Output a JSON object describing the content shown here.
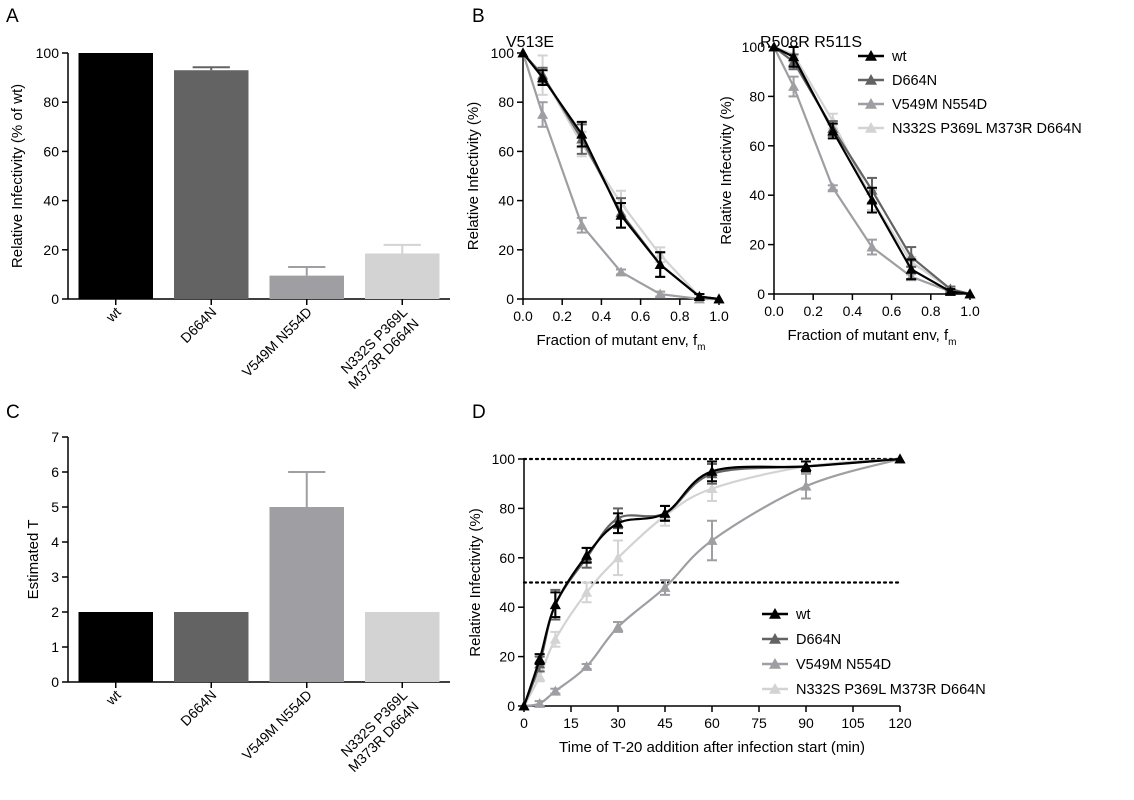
{
  "panels": {
    "A": {
      "letter": "A",
      "chart_data": {
        "type": "bar",
        "ylabel": "Relative Infectivity (% of wt)",
        "ylim": [
          0,
          100
        ],
        "yticks": [
          0,
          20,
          40,
          60,
          80,
          100
        ],
        "categories": [
          "wt",
          "D664N",
          "V549M N554D",
          "N332S P369L\nM373R D664N"
        ],
        "values": [
          100,
          93,
          9.5,
          18.5
        ],
        "errors": [
          0,
          1.2,
          3.5,
          3.5
        ],
        "colors": [
          "#000000",
          "#636363",
          "#9e9ea3",
          "#d3d3d3"
        ]
      }
    },
    "B": {
      "letter": "B",
      "chart_data": [
        {
          "type": "line",
          "title": "V513E",
          "xlabel": "Fraction of mutant env, f",
          "xlabel_sub": "m",
          "ylabel": "Relative Infectivity (%)",
          "xlim": [
            0,
            1
          ],
          "ylim": [
            0,
            100
          ],
          "xticks": [
            "0.0",
            "0.2",
            "0.4",
            "0.6",
            "0.8",
            "1.0"
          ],
          "yticks": [
            0,
            20,
            40,
            60,
            80,
            100
          ],
          "x": [
            0,
            0.1,
            0.3,
            0.5,
            0.7,
            0.9,
            1.0
          ],
          "series": [
            {
              "name": "wt",
              "color": "#000000",
              "values": [
                100,
                90,
                67,
                34,
                14,
                1,
                0
              ],
              "errors": [
                0,
                3,
                5,
                5,
                5,
                1,
                0
              ]
            },
            {
              "name": "D664N",
              "color": "#636363",
              "values": [
                100,
                91,
                65,
                35,
                14,
                1,
                0
              ],
              "errors": [
                0,
                3,
                6,
                6,
                5,
                1,
                0
              ]
            },
            {
              "name": "V549M N554D",
              "color": "#9e9ea3",
              "values": [
                100,
                75,
                30,
                11,
                2,
                0,
                0
              ],
              "errors": [
                0,
                5,
                3,
                1,
                1,
                0,
                0
              ]
            },
            {
              "name": "N332S P369L M373R D664N",
              "color": "#d3d3d3",
              "values": [
                100,
                91,
                63,
                39,
                18,
                1,
                0
              ],
              "errors": [
                0,
                8,
                5,
                5,
                3,
                1,
                0
              ]
            }
          ]
        },
        {
          "type": "line",
          "title": "R508R R511S",
          "xlabel": "Fraction of mutant env, f",
          "xlabel_sub": "m",
          "ylabel": "Relative Infectivity (%)",
          "xlim": [
            0,
            1
          ],
          "ylim": [
            0,
            100
          ],
          "xticks": [
            "0.0",
            "0.2",
            "0.4",
            "0.6",
            "0.8",
            "1.0"
          ],
          "yticks": [
            0,
            20,
            40,
            60,
            80,
            100
          ],
          "x": [
            0,
            0.1,
            0.3,
            0.5,
            0.7,
            0.9,
            1.0
          ],
          "series": [
            {
              "name": "wt",
              "color": "#000000",
              "values": [
                100,
                96,
                66,
                38,
                10,
                1,
                0
              ],
              "errors": [
                0,
                4,
                3,
                5,
                4,
                1,
                0
              ]
            },
            {
              "name": "D664N",
              "color": "#636363",
              "values": [
                100,
                94,
                67,
                42,
                15,
                2,
                0
              ],
              "errors": [
                0,
                3,
                3,
                5,
                4,
                1,
                0
              ]
            },
            {
              "name": "V549M N554D",
              "color": "#9e9ea3",
              "values": [
                100,
                84,
                43,
                19,
                7,
                1,
                0
              ],
              "errors": [
                0,
                4,
                1,
                3,
                1,
                0,
                0
              ]
            },
            {
              "name": "N332S P369L M373R D664N",
              "color": "#d3d3d3",
              "values": [
                100,
                97,
                70,
                38,
                13,
                2,
                0
              ],
              "errors": [
                0,
                3,
                3,
                4,
                2,
                1,
                0
              ]
            }
          ]
        }
      ],
      "legend": [
        "wt",
        "D664N",
        "V549M N554D",
        "N332S P369L M373R D664N"
      ]
    },
    "C": {
      "letter": "C",
      "chart_data": {
        "type": "bar",
        "ylabel": "Estimated T",
        "ylim": [
          0,
          7
        ],
        "yticks": [
          0,
          1,
          2,
          3,
          4,
          5,
          6,
          7
        ],
        "categories": [
          "wt",
          "D664N",
          "V549M N554D",
          "N332S P369L\nM373R D664N"
        ],
        "values": [
          2,
          2,
          5,
          2
        ],
        "errors": [
          0,
          0,
          1,
          0
        ],
        "colors": [
          "#000000",
          "#636363",
          "#9e9ea3",
          "#d3d3d3"
        ]
      }
    },
    "D": {
      "letter": "D",
      "chart_data": {
        "type": "line",
        "xlabel": "Time of T-20 addition after infection start (min)",
        "ylabel": "Relative Infectivity (%)",
        "xlim": [
          0,
          120
        ],
        "ylim": [
          0,
          100
        ],
        "xticks": [
          0,
          15,
          30,
          45,
          60,
          75,
          90,
          105,
          120
        ],
        "yticks": [
          0,
          20,
          40,
          60,
          80,
          100
        ],
        "reference_lines": [
          100,
          50
        ],
        "x": [
          0,
          5,
          10,
          20,
          30,
          45,
          60,
          90,
          120
        ],
        "series": [
          {
            "name": "wt",
            "color": "#000000",
            "values": [
              0,
              19,
              41,
              61,
              74,
              78,
              95,
              97,
              100
            ],
            "errors": [
              0,
              2,
              5,
              3,
              4,
              3,
              4,
              2,
              0
            ]
          },
          {
            "name": "D664N",
            "color": "#636363",
            "values": [
              0,
              17,
              41,
              60,
              76,
              78,
              94,
              97,
              100
            ],
            "errors": [
              0,
              3,
              6,
              4,
              4,
              3,
              4,
              2,
              0
            ]
          },
          {
            "name": "V549M N554D",
            "color": "#9e9ea3",
            "values": [
              0,
              1,
              6,
              16,
              32,
              48,
              67,
              89,
              100
            ],
            "errors": [
              0,
              1,
              1,
              1,
              2,
              3,
              8,
              5,
              0
            ]
          },
          {
            "name": "N332S P369L M373R D664N",
            "color": "#d3d3d3",
            "values": [
              0,
              12,
              27,
              46,
              60,
              77,
              88,
              97,
              100
            ],
            "errors": [
              0,
              2,
              3,
              4,
              7,
              4,
              5,
              2,
              0
            ]
          }
        ]
      },
      "legend": [
        "wt",
        "D664N",
        "V549M N554D",
        "N332S P369L M373R D664N"
      ]
    }
  }
}
